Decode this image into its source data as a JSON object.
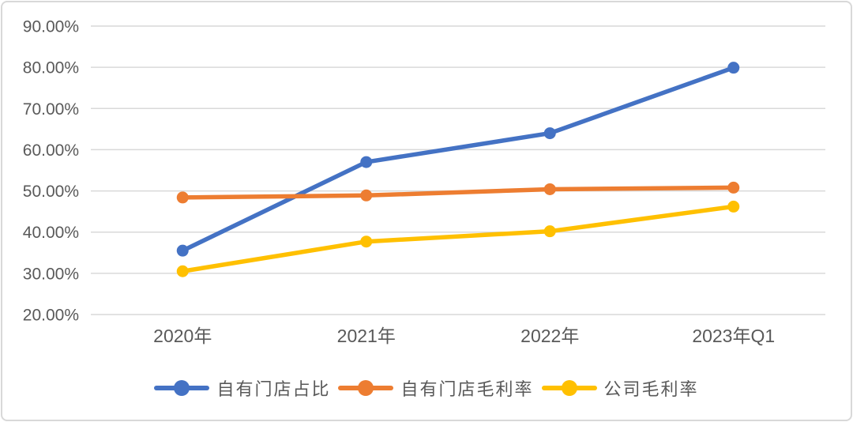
{
  "chart_data": {
    "type": "line",
    "title": "",
    "categories": [
      "2020年",
      "2021年",
      "2022年",
      "2023年Q1"
    ],
    "series": [
      {
        "name": "自有门店占比",
        "color": "#4472C4",
        "values": [
          35.5,
          57.0,
          64.0,
          79.9
        ]
      },
      {
        "name": "自有门店毛利率",
        "color": "#ED7D31",
        "values": [
          48.4,
          48.9,
          50.4,
          50.8
        ]
      },
      {
        "name": "公司毛利率",
        "color": "#FFC000",
        "values": [
          30.5,
          37.7,
          40.2,
          46.2
        ]
      }
    ],
    "xlabel": "",
    "ylabel": "",
    "ylim": [
      20,
      90
    ],
    "y_ticks": [
      {
        "value": 90,
        "label": "90.00%"
      },
      {
        "value": 80,
        "label": "80.00%"
      },
      {
        "value": 70,
        "label": "70.00%"
      },
      {
        "value": 60,
        "label": "60.00%"
      },
      {
        "value": 50,
        "label": "50.00%"
      },
      {
        "value": 40,
        "label": "40.00%"
      },
      {
        "value": 30,
        "label": "30.00%"
      },
      {
        "value": 20,
        "label": "20.00%"
      }
    ],
    "grid": "horizontal gridlines on",
    "legend_position": "bottom",
    "marker": "circle"
  },
  "palette": {
    "background": "#FFFFFF",
    "card_border": "#D8D8D8",
    "gridline": "#D9D9D9",
    "tick_text": "#595959",
    "legend_text": "#595959"
  }
}
